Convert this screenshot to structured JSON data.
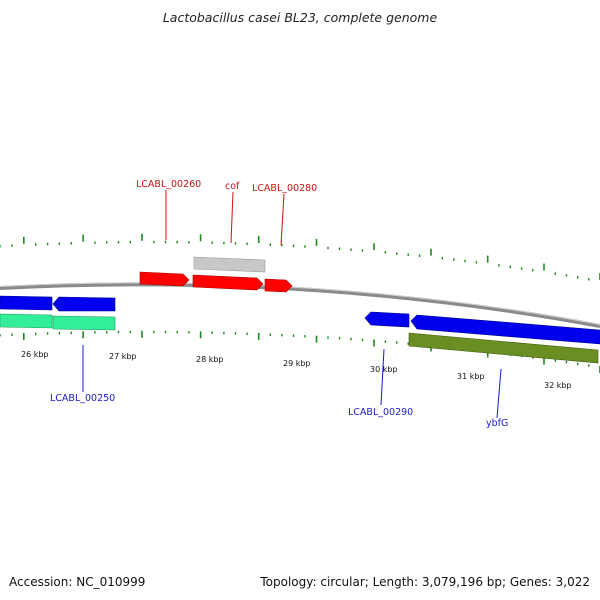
{
  "title": "Lactobacillus casei BL23, complete genome",
  "footer": {
    "accession": "Accession: NC_010999",
    "summary": "Topology: circular; Length: 3,079,196 bp; Genes: 3,022"
  },
  "colors": {
    "backbone": "#8a8a8a",
    "tick": "#1f8a1f",
    "forward_label": "#cc1111",
    "reverse_label": "#1a1acc",
    "gene_red": "#ff0000",
    "gene_blue": "#0000ee",
    "gene_grey": "#c8c8c8",
    "gene_green": "#33ee99",
    "gene_olive": "#6b8e23"
  },
  "scale_labels": [
    "26 kbp",
    "27 kbp",
    "28 kbp",
    "29 kbp",
    "30 kbp",
    "31 kbp",
    "32 kbp"
  ],
  "gene_labels": {
    "LCABL_00260": "LCABL_00260",
    "cof": "cof",
    "LCABL_00280": "LCABL_00280",
    "LCABL_00250": "LCABL_00250",
    "LCABL_00290": "LCABL_00290",
    "ybfG": "ybfG"
  }
}
